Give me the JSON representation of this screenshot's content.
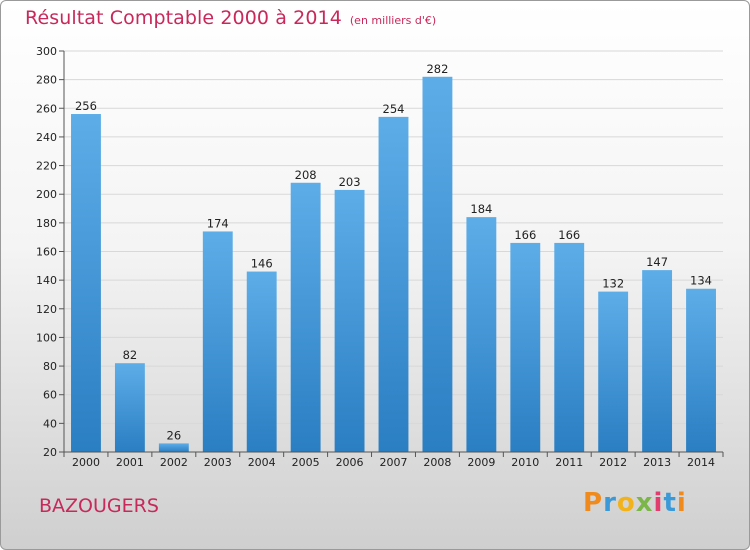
{
  "header": {
    "title": "Résultat Comptable 2000 à 2014",
    "subtitle": "(en milliers d'€)"
  },
  "footer": {
    "commune": "BAZOUGERS",
    "logo_text": "Proxiti"
  },
  "colors": {
    "bar_light": "#5dade8",
    "bar_dark": "#2a7ec2",
    "title": "#c8285a",
    "grid": "#d8d8d8"
  },
  "chart_data": {
    "type": "bar",
    "title": "Résultat Comptable 2000 à 2014",
    "subtitle": "(en milliers d'€)",
    "categories": [
      "2000",
      "2001",
      "2002",
      "2003",
      "2004",
      "2005",
      "2006",
      "2007",
      "2008",
      "2009",
      "2010",
      "2011",
      "2012",
      "2013",
      "2014"
    ],
    "values": [
      256,
      82,
      26,
      174,
      146,
      208,
      203,
      254,
      282,
      184,
      166,
      166,
      132,
      147,
      134
    ],
    "ylim": [
      20,
      300
    ],
    "yticks": [
      20,
      40,
      60,
      80,
      100,
      120,
      140,
      160,
      180,
      200,
      220,
      240,
      260,
      280,
      300
    ],
    "grid": true,
    "legend": "none"
  }
}
